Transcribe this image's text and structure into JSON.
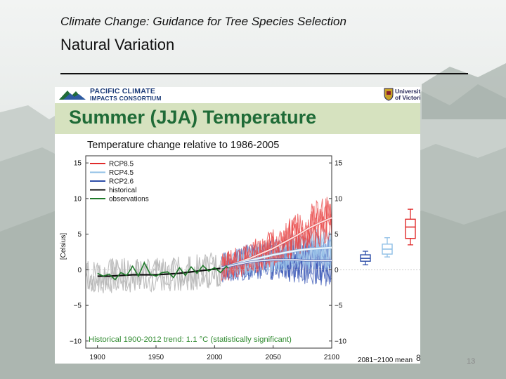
{
  "slide": {
    "supertitle": "Climate Change: Guidance for Tree Species Selection",
    "title": "Natural Variation",
    "slide_number": "13",
    "panel_page_number": "8"
  },
  "branding": {
    "left_logo_line1": "PACIFIC CLIMATE",
    "left_logo_line2": "IMPACTS CONSORTIUM",
    "right_logo_line1": "University",
    "right_logo_line2": "of Victoria"
  },
  "chart_header": "Summer (JJA) Temperature",
  "chart_data": {
    "type": "line",
    "title": "Temperature change relative to 1986-2005",
    "ylabel": "[Celsius]",
    "xlabel": "",
    "xlim": [
      1890,
      2100
    ],
    "ylim": [
      -11,
      16
    ],
    "x_ticks": [
      1900,
      1950,
      2000,
      2050,
      2100
    ],
    "y_ticks": [
      15,
      10,
      5,
      0,
      -5,
      -10
    ],
    "y_tick_labels": [
      "15",
      "10",
      "5",
      "0",
      "−5",
      "−10"
    ],
    "legend_position": "top-left",
    "series": [
      {
        "name": "RCP8.5",
        "color": "#e02b2b",
        "x": [
          2006,
          2020,
          2030,
          2040,
          2050,
          2060,
          2070,
          2080,
          2090,
          2100
        ],
        "y": [
          0.3,
          1.0,
          1.6,
          2.3,
          3.0,
          3.9,
          4.8,
          5.8,
          6.6,
          7.3
        ]
      },
      {
        "name": "RCP4.5",
        "color": "#8fbfe6",
        "x": [
          2006,
          2020,
          2030,
          2040,
          2050,
          2060,
          2070,
          2080,
          2090,
          2100
        ],
        "y": [
          0.3,
          0.9,
          1.3,
          1.7,
          2.1,
          2.4,
          2.7,
          2.9,
          3.0,
          3.1
        ]
      },
      {
        "name": "RCP2.6",
        "color": "#2e4ea8",
        "x": [
          2006,
          2020,
          2030,
          2040,
          2050,
          2060,
          2070,
          2080,
          2090,
          2100
        ],
        "y": [
          0.3,
          0.8,
          1.1,
          1.3,
          1.4,
          1.4,
          1.4,
          1.3,
          1.3,
          1.3
        ]
      },
      {
        "name": "historical",
        "color": "#111111",
        "x": [
          1900,
          1910,
          1920,
          1930,
          1940,
          1950,
          1960,
          1970,
          1980,
          1990,
          2000,
          2005
        ],
        "y": [
          -0.9,
          -0.9,
          -0.8,
          -0.7,
          -0.7,
          -0.7,
          -0.6,
          -0.5,
          -0.3,
          -0.1,
          0.1,
          0.2
        ]
      },
      {
        "name": "observations",
        "color": "#1f7a2a",
        "x": [
          1900,
          1905,
          1910,
          1915,
          1920,
          1925,
          1930,
          1935,
          1940,
          1945,
          1950,
          1955,
          1960,
          1965,
          1970,
          1975,
          1980,
          1985,
          1990,
          1995,
          2000,
          2005,
          2010,
          2012
        ],
        "y": [
          -0.5,
          -0.9,
          -0.6,
          -1.4,
          -0.4,
          -0.8,
          0.5,
          -0.9,
          1.0,
          -0.6,
          -0.9,
          -0.4,
          -0.3,
          -1.1,
          0.3,
          -0.8,
          0.4,
          -0.5,
          0.6,
          -0.2,
          0.3,
          -0.4,
          0.5,
          0.2
        ]
      }
    ],
    "annotation": "Historical 1900-2012 trend: 1.1 °C (statistically significant)",
    "boxplots": {
      "label": "2081−2100 mean",
      "items": [
        {
          "name": "RCP2.6",
          "color": "#2e4ea8",
          "whisker_low": 0.7,
          "q1": 1.2,
          "median": 1.6,
          "q3": 2.1,
          "whisker_high": 2.6
        },
        {
          "name": "RCP4.5",
          "color": "#8fbfe6",
          "whisker_low": 1.8,
          "q1": 2.2,
          "median": 2.9,
          "q3": 3.6,
          "whisker_high": 4.5
        },
        {
          "name": "RCP8.5",
          "color": "#e02b2b",
          "whisker_low": 3.5,
          "q1": 4.4,
          "median": 6.0,
          "q3": 7.1,
          "whisker_high": 8.5
        }
      ]
    }
  }
}
